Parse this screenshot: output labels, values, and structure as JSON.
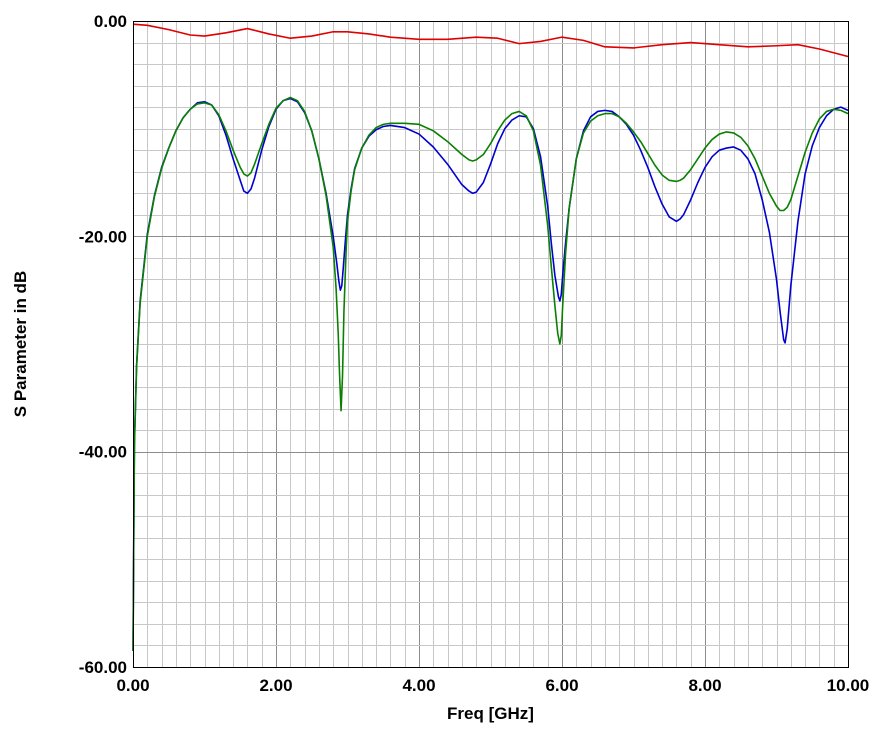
{
  "chart_data": {
    "type": "line",
    "title": "",
    "xlabel": "Freq [GHz]",
    "ylabel": "S Parameter in dB",
    "xlim": [
      0,
      10
    ],
    "ylim": [
      -60,
      0
    ],
    "x_major_step": 2,
    "x_minor_step": 0.2,
    "y_major_step": 20,
    "y_minor_step": 2,
    "x_tick_values": [
      0,
      2,
      4,
      6,
      8,
      10
    ],
    "y_tick_values": [
      0,
      -20,
      -40,
      -60
    ],
    "x_tick_labels": [
      "0.00",
      "2.00",
      "4.00",
      "6.00",
      "8.00",
      "10.00"
    ],
    "y_tick_labels": [
      "0.00",
      "-20.00",
      "-40.00",
      "-60.00"
    ],
    "grid": true,
    "legend": "none",
    "series": [
      {
        "color": "#e00000",
        "x": [
          0,
          0.2,
          0.5,
          0.8,
          1.0,
          1.3,
          1.6,
          1.9,
          2.2,
          2.5,
          2.8,
          3.0,
          3.3,
          3.6,
          4.0,
          4.4,
          4.8,
          5.1,
          5.4,
          5.7,
          6.0,
          6.3,
          6.6,
          7.0,
          7.4,
          7.8,
          8.2,
          8.6,
          9.0,
          9.3,
          9.6,
          10.0
        ],
        "y": [
          -0.3,
          -0.4,
          -0.8,
          -1.3,
          -1.4,
          -1.1,
          -0.7,
          -1.2,
          -1.6,
          -1.4,
          -1.0,
          -1.0,
          -1.2,
          -1.5,
          -1.7,
          -1.7,
          -1.5,
          -1.6,
          -2.1,
          -1.9,
          -1.5,
          -1.8,
          -2.4,
          -2.5,
          -2.2,
          -2.0,
          -2.2,
          -2.4,
          -2.3,
          -2.2,
          -2.6,
          -3.3
        ]
      },
      {
        "color": "#0000d0",
        "x": [
          0,
          0.02,
          0.05,
          0.1,
          0.2,
          0.3,
          0.4,
          0.5,
          0.6,
          0.7,
          0.8,
          0.9,
          1.0,
          1.1,
          1.2,
          1.3,
          1.4,
          1.5,
          1.55,
          1.6,
          1.65,
          1.7,
          1.8,
          1.9,
          2.0,
          2.1,
          2.2,
          2.3,
          2.4,
          2.5,
          2.6,
          2.7,
          2.8,
          2.85,
          2.88,
          2.9,
          2.92,
          2.94,
          2.97,
          3.0,
          3.05,
          3.1,
          3.2,
          3.3,
          3.4,
          3.5,
          3.6,
          3.8,
          4.0,
          4.2,
          4.4,
          4.6,
          4.7,
          4.75,
          4.8,
          4.9,
          5.0,
          5.1,
          5.2,
          5.3,
          5.4,
          5.5,
          5.6,
          5.7,
          5.8,
          5.85,
          5.9,
          5.95,
          5.97,
          5.99,
          6.01,
          6.05,
          6.1,
          6.2,
          6.3,
          6.4,
          6.5,
          6.6,
          6.7,
          6.8,
          6.9,
          7.0,
          7.1,
          7.2,
          7.3,
          7.4,
          7.5,
          7.6,
          7.65,
          7.7,
          7.8,
          7.9,
          8.0,
          8.1,
          8.2,
          8.3,
          8.4,
          8.5,
          8.6,
          8.7,
          8.8,
          8.9,
          9.0,
          9.05,
          9.1,
          9.12,
          9.15,
          9.2,
          9.3,
          9.4,
          9.5,
          9.6,
          9.7,
          9.8,
          9.9,
          10.0
        ],
        "y": [
          -58.5,
          -39.0,
          -32.0,
          -26.0,
          -19.8,
          -16.2,
          -13.6,
          -11.8,
          -10.2,
          -9.0,
          -8.2,
          -7.6,
          -7.5,
          -7.8,
          -8.8,
          -10.6,
          -12.8,
          -14.8,
          -15.8,
          -16.0,
          -15.6,
          -14.6,
          -12.0,
          -9.8,
          -8.2,
          -7.4,
          -7.2,
          -7.5,
          -8.5,
          -10.2,
          -12.8,
          -16.0,
          -20.0,
          -22.5,
          -24.2,
          -25.0,
          -24.6,
          -23.0,
          -20.4,
          -18.0,
          -15.6,
          -13.7,
          -11.8,
          -10.7,
          -10.1,
          -9.8,
          -9.7,
          -9.9,
          -10.5,
          -11.7,
          -13.3,
          -15.2,
          -15.8,
          -16.0,
          -15.9,
          -15.0,
          -13.3,
          -11.4,
          -10.0,
          -9.2,
          -8.8,
          -8.9,
          -10.0,
          -12.6,
          -17.2,
          -20.6,
          -23.6,
          -25.6,
          -26.0,
          -25.4,
          -23.6,
          -20.6,
          -17.4,
          -12.8,
          -10.2,
          -8.9,
          -8.4,
          -8.3,
          -8.4,
          -8.9,
          -9.6,
          -10.6,
          -12.0,
          -13.6,
          -15.4,
          -17.0,
          -18.2,
          -18.6,
          -18.4,
          -18.0,
          -16.6,
          -15.0,
          -13.6,
          -12.6,
          -12.0,
          -11.8,
          -11.7,
          -12.0,
          -12.8,
          -14.2,
          -16.6,
          -19.6,
          -24.0,
          -27.0,
          -29.6,
          -29.9,
          -28.6,
          -24.6,
          -18.6,
          -14.2,
          -11.6,
          -9.9,
          -8.8,
          -8.2,
          -8.0,
          -8.3
        ]
      },
      {
        "color": "#0a8000",
        "x": [
          0,
          0.02,
          0.05,
          0.1,
          0.2,
          0.3,
          0.4,
          0.5,
          0.6,
          0.7,
          0.8,
          0.9,
          1.0,
          1.1,
          1.2,
          1.3,
          1.4,
          1.5,
          1.55,
          1.6,
          1.65,
          1.7,
          1.8,
          1.9,
          2.0,
          2.1,
          2.2,
          2.3,
          2.4,
          2.5,
          2.6,
          2.7,
          2.8,
          2.84,
          2.87,
          2.89,
          2.91,
          2.93,
          2.95,
          2.98,
          3.0,
          3.05,
          3.1,
          3.2,
          3.3,
          3.4,
          3.5,
          3.6,
          3.8,
          4.0,
          4.2,
          4.4,
          4.6,
          4.7,
          4.75,
          4.8,
          4.9,
          5.0,
          5.1,
          5.2,
          5.3,
          5.4,
          5.5,
          5.6,
          5.7,
          5.8,
          5.85,
          5.9,
          5.94,
          5.97,
          5.99,
          6.01,
          6.05,
          6.1,
          6.2,
          6.3,
          6.4,
          6.5,
          6.6,
          6.7,
          6.8,
          6.9,
          7.0,
          7.1,
          7.2,
          7.3,
          7.4,
          7.5,
          7.6,
          7.65,
          7.7,
          7.8,
          7.9,
          8.0,
          8.1,
          8.2,
          8.3,
          8.4,
          8.5,
          8.6,
          8.7,
          8.8,
          8.9,
          9.0,
          9.05,
          9.1,
          9.15,
          9.2,
          9.3,
          9.4,
          9.5,
          9.6,
          9.7,
          9.8,
          9.9,
          10.0
        ],
        "y": [
          -58.5,
          -39.5,
          -32.2,
          -26.2,
          -20.0,
          -16.3,
          -13.7,
          -11.8,
          -10.2,
          -9.0,
          -8.2,
          -7.7,
          -7.6,
          -7.8,
          -8.7,
          -10.2,
          -12.0,
          -13.6,
          -14.2,
          -14.4,
          -14.1,
          -13.3,
          -11.4,
          -9.6,
          -8.1,
          -7.4,
          -7.1,
          -7.4,
          -8.4,
          -10.2,
          -12.8,
          -16.2,
          -21.0,
          -24.8,
          -29.0,
          -33.0,
          -36.2,
          -33.0,
          -27.0,
          -21.4,
          -18.6,
          -15.8,
          -13.8,
          -11.8,
          -10.6,
          -9.9,
          -9.6,
          -9.5,
          -9.5,
          -9.6,
          -10.2,
          -11.2,
          -12.4,
          -12.9,
          -13.0,
          -12.9,
          -12.4,
          -11.4,
          -10.2,
          -9.2,
          -8.6,
          -8.4,
          -8.8,
          -10.2,
          -13.4,
          -19.0,
          -22.8,
          -26.4,
          -29.0,
          -30.0,
          -29.2,
          -26.4,
          -21.6,
          -17.4,
          -12.8,
          -10.4,
          -9.3,
          -8.8,
          -8.6,
          -8.6,
          -8.9,
          -9.5,
          -10.3,
          -11.2,
          -12.3,
          -13.4,
          -14.3,
          -14.8,
          -14.9,
          -14.8,
          -14.6,
          -13.8,
          -12.8,
          -11.8,
          -11.0,
          -10.5,
          -10.3,
          -10.4,
          -10.8,
          -11.6,
          -12.8,
          -14.4,
          -16.0,
          -17.2,
          -17.6,
          -17.6,
          -17.3,
          -16.6,
          -14.4,
          -12.2,
          -10.4,
          -9.1,
          -8.4,
          -8.2,
          -8.3,
          -8.6
        ]
      }
    ]
  }
}
